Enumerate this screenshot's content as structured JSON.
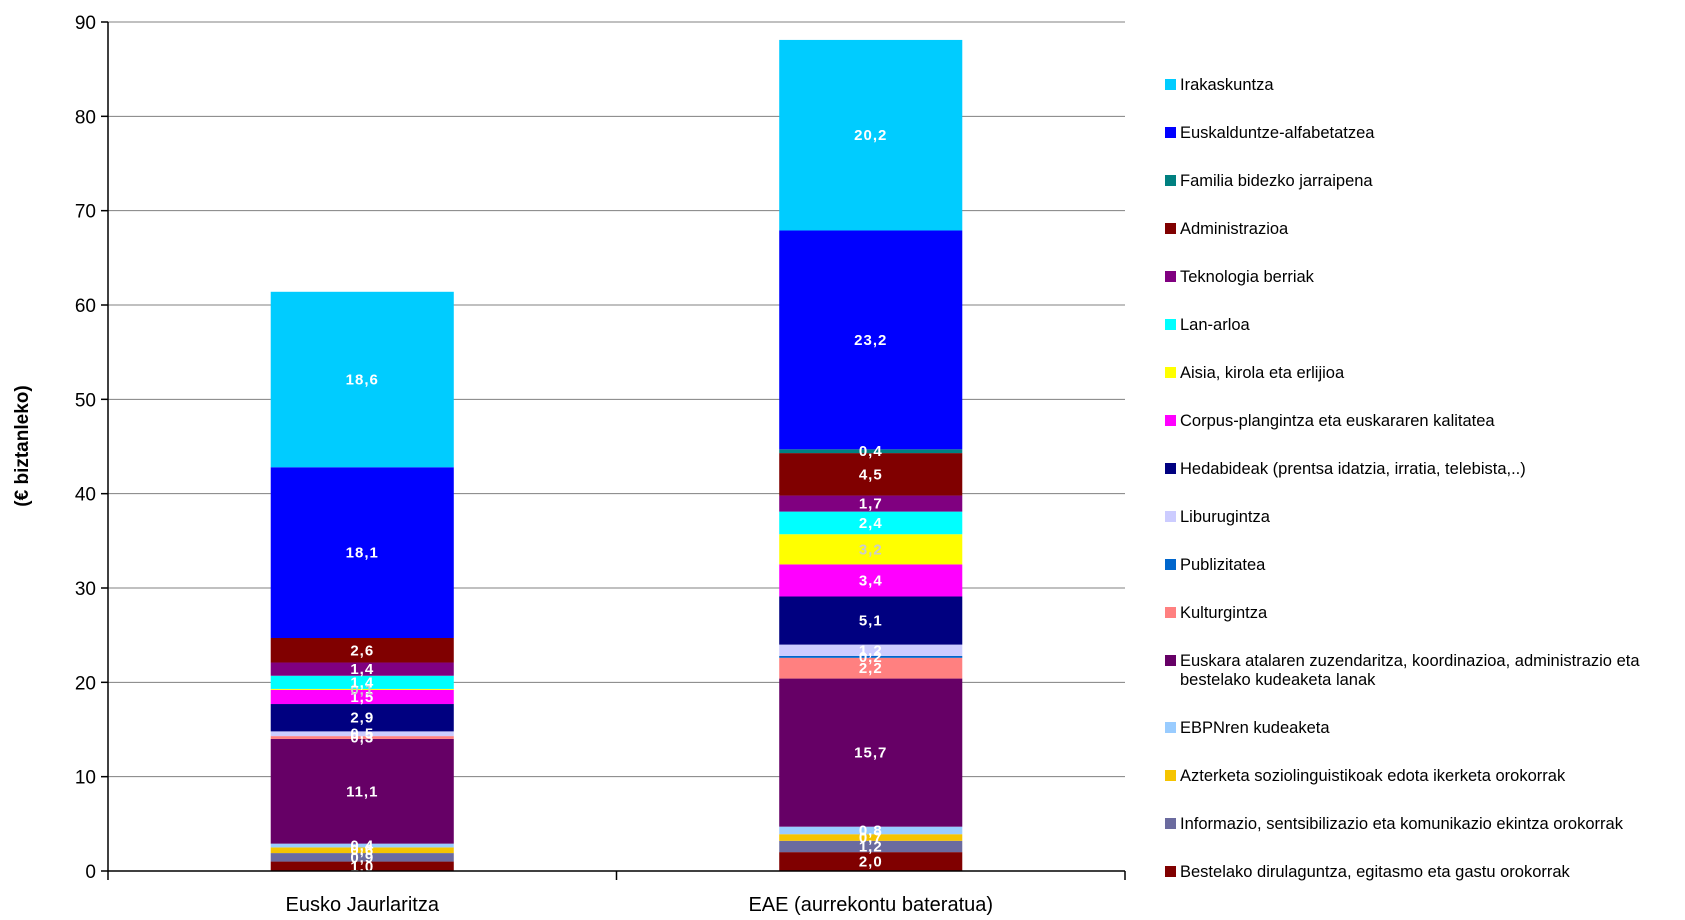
{
  "chart_data": {
    "type": "bar",
    "stacked": true,
    "ylabel": "(€ biztanleko)",
    "ylim": [
      0,
      90
    ],
    "yticks": [
      0,
      10,
      20,
      30,
      40,
      50,
      60,
      70,
      80,
      90
    ],
    "categories": [
      "Eusko Jaurlaritza",
      "EAE (aurrekontu bateratua)"
    ],
    "legend_position": "right",
    "series": [
      {
        "name": "Bestelako dirulaguntza, egitasmo eta gastu orokorrak",
        "color": "#800000",
        "values": [
          1.0,
          2.0
        ],
        "labels": [
          "1,0",
          "2,0"
        ],
        "label_colors": [
          "#ffffff",
          "#ffffff"
        ]
      },
      {
        "name": "Informazio, sentsibilizazio eta komunikazio ekintza orokorrak",
        "color": "#6b6b9f",
        "values": [
          0.9,
          1.2
        ],
        "labels": [
          "0,9",
          "1,2"
        ],
        "label_colors": [
          "#ffffff",
          "#ffffff"
        ]
      },
      {
        "name": "Azterketa soziolinguistikoak edota ikerketa orokorrak",
        "color": "#f5c400",
        "values": [
          0.6,
          0.7
        ],
        "labels": [
          "0,6",
          "0,7"
        ],
        "label_colors": [
          "#ffffff",
          "#ffffff"
        ]
      },
      {
        "name": "EBPNren kudeaketa",
        "color": "#99ccff",
        "values": [
          0.4,
          0.8
        ],
        "labels": [
          "0,4",
          "0,8"
        ],
        "label_colors": [
          "#ffffff",
          "#ffffff"
        ]
      },
      {
        "name": "Euskara atalaren zuzendaritza, koordinazioa, administrazio eta bestelako kudeaketa lanak",
        "color": "#660066",
        "values": [
          11.1,
          15.7
        ],
        "labels": [
          "11,1",
          "15,7"
        ],
        "label_colors": [
          "#ffffff",
          "#ffffff"
        ]
      },
      {
        "name": "Kulturgintza",
        "color": "#ff8080",
        "values": [
          0.3,
          2.2
        ],
        "labels": [
          "0,3",
          "2,2"
        ],
        "label_colors": [
          "#ffffff",
          "#ffffff"
        ]
      },
      {
        "name": "Publizitatea",
        "color": "#0066cc",
        "values": [
          0.0,
          0.2
        ],
        "labels": [
          "",
          "0,2"
        ],
        "label_colors": [
          "#ffffff",
          "#ffffff"
        ]
      },
      {
        "name": "Liburugintza",
        "color": "#ccccff",
        "values": [
          0.5,
          1.2
        ],
        "labels": [
          "0,5",
          "1,2"
        ],
        "label_colors": [
          "#ffffff",
          "#ffffff"
        ]
      },
      {
        "name": "Hedabideak (prentsa idatzia, irratia, telebista,..)",
        "color": "#000080",
        "values": [
          2.9,
          5.1
        ],
        "labels": [
          "2,9",
          "5,1"
        ],
        "label_colors": [
          "#ffffff",
          "#ffffff"
        ]
      },
      {
        "name": "Corpus-plangintza eta euskararen kalitatea",
        "color": "#ff00ff",
        "values": [
          1.5,
          3.4
        ],
        "labels": [
          "1,5",
          "3,4"
        ],
        "label_colors": [
          "#ffffff",
          "#ffffff"
        ]
      },
      {
        "name": "Aisia, kirola eta erlijioa",
        "color": "#ffff00",
        "values": [
          0.1,
          3.2
        ],
        "labels": [
          "0,1",
          "3,2"
        ],
        "label_colors": [
          "#cccccc",
          "#cccccc"
        ]
      },
      {
        "name": "Lan-arloa",
        "color": "#00ffff",
        "values": [
          1.4,
          2.4
        ],
        "labels": [
          "1,4",
          "2,4"
        ],
        "label_colors": [
          "#ffffff",
          "#ffffff"
        ]
      },
      {
        "name": "Teknologia berriak",
        "color": "#800080",
        "values": [
          1.4,
          1.7
        ],
        "labels": [
          "1,4",
          "1,7"
        ],
        "label_colors": [
          "#ffffff",
          "#ffffff"
        ]
      },
      {
        "name": "Administrazioa",
        "color": "#800000",
        "values": [
          2.6,
          4.5
        ],
        "labels": [
          "2,6",
          "4,5"
        ],
        "label_colors": [
          "#ffffff",
          "#ffffff"
        ]
      },
      {
        "name": "Familia bidezko jarraipena",
        "color": "#008080",
        "values": [
          0.0,
          0.4
        ],
        "labels": [
          "",
          "0,4"
        ],
        "label_colors": [
          "#ffffff",
          "#ffffff"
        ]
      },
      {
        "name": "Euskalduntze-alfabetatzea",
        "color": "#0000ff",
        "values": [
          18.1,
          23.2
        ],
        "labels": [
          "18,1",
          "23,2"
        ],
        "label_colors": [
          "#ffffff",
          "#ffffff"
        ]
      },
      {
        "name": "Irakaskuntza",
        "color": "#00ccff",
        "values": [
          18.6,
          20.2
        ],
        "labels": [
          "18,6",
          "20,2"
        ],
        "label_colors": [
          "#ffffff",
          "#ffffff"
        ]
      }
    ]
  }
}
